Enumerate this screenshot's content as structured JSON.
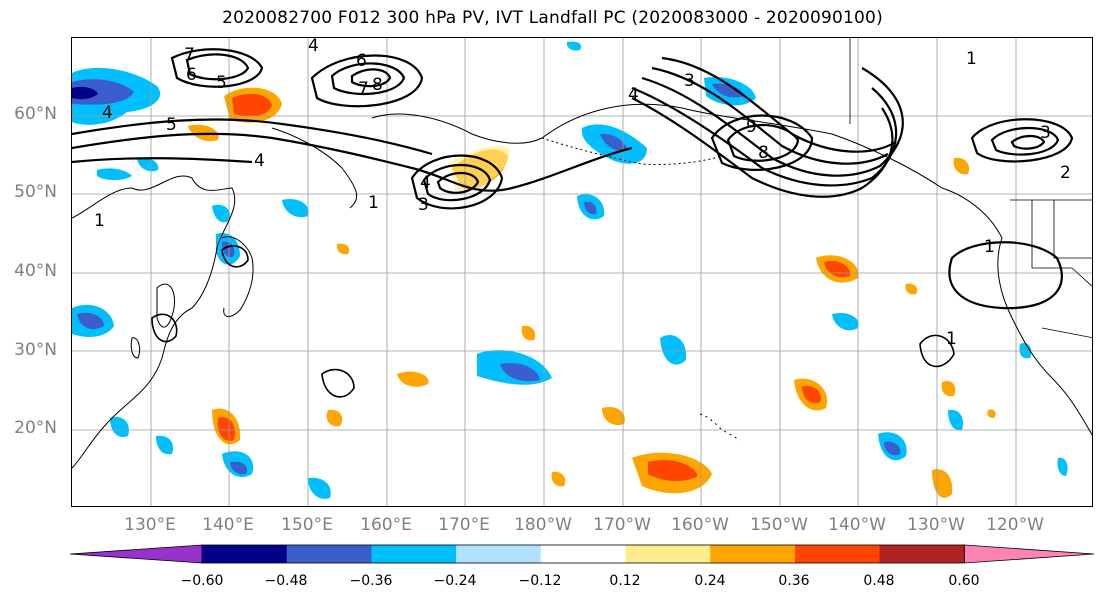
{
  "title": "2020082700 F012 300 hPa PV, IVT Landfall PC (2020083000 - 2020090100)",
  "lat_labels": [
    "60°N",
    "50°N",
    "40°N",
    "30°N",
    "20°N"
  ],
  "lon_labels": [
    "130°E",
    "140°E",
    "150°E",
    "160°E",
    "170°E",
    "180°W",
    "170°W",
    "160°W",
    "150°W",
    "140°W",
    "130°W",
    "120°W"
  ],
  "colorbar": {
    "ticks": [
      "−0.60",
      "−0.48",
      "−0.36",
      "−0.24",
      "−0.12",
      "0.12",
      "0.24",
      "0.36",
      "0.48",
      "0.60"
    ],
    "colors": [
      "#9932cc",
      "#00008b",
      "#3a5fcd",
      "#00bfff",
      "#b0e2ff",
      "#ffffff",
      "#ffec8b",
      "#ffa500",
      "#ff4500",
      "#b22222",
      "#ff83b4"
    ]
  },
  "contour_labels": [
    "4",
    "6",
    "7",
    "5",
    "6",
    "7",
    "8",
    "4",
    "4",
    "5",
    "4",
    "3",
    "8",
    "9",
    "4",
    "3",
    "2",
    "1",
    "3",
    "1",
    "1",
    "1",
    "1"
  ],
  "colors": {
    "negative_shade": "#00bfff",
    "positive_shade": "#ffa500",
    "contour": "#000000",
    "grid": "#9a9a9a",
    "coast": "#000000"
  }
}
